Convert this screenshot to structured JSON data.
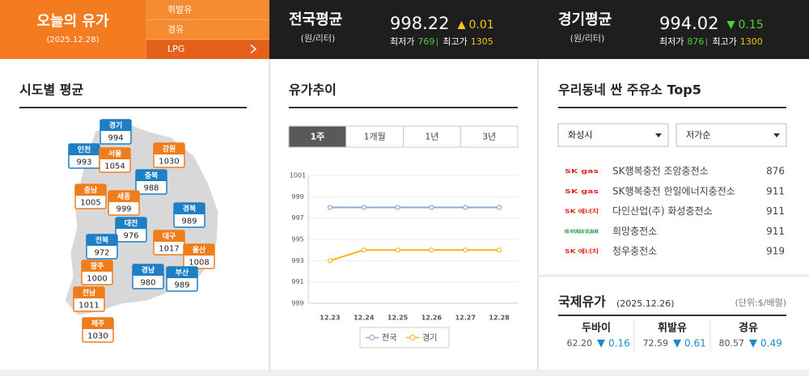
{
  "header": {
    "title": "오늘의 유가",
    "date": "(2025.12.28)",
    "fuel_menu": [
      "휘발유",
      "경유",
      "LPG"
    ],
    "selected_fuel": 2,
    "averages": [
      {
        "label": "전국평균",
        "unit": "(원/리터)",
        "price": "998.22",
        "direction": "up",
        "change": "0.01",
        "min_label": "최저가",
        "min": "769",
        "max_label": "최고가",
        "max": "1305"
      },
      {
        "label": "경기평균",
        "unit": "(원/리터)",
        "price": "994.02",
        "direction": "down",
        "change": "0.15",
        "min_label": "최저가",
        "min": "876",
        "max_label": "최고가",
        "max": "1300"
      }
    ]
  },
  "regional": {
    "title": "시도별 평균",
    "regions": [
      {
        "name": "경기",
        "price": "994",
        "color": "#1f7fc4"
      },
      {
        "name": "인천",
        "price": "993",
        "color": "#1f7fc4"
      },
      {
        "name": "서울",
        "price": "1054",
        "color": "#f07d1c"
      },
      {
        "name": "강원",
        "price": "1030",
        "color": "#f07d1c"
      },
      {
        "name": "충북",
        "price": "988",
        "color": "#1f7fc4"
      },
      {
        "name": "충남",
        "price": "1005",
        "color": "#f07d1c"
      },
      {
        "name": "세종",
        "price": "999",
        "color": "#f07d1c"
      },
      {
        "name": "경북",
        "price": "989",
        "color": "#1f7fc4"
      },
      {
        "name": "대전",
        "price": "976",
        "color": "#1f7fc4"
      },
      {
        "name": "전북",
        "price": "972",
        "color": "#1f7fc4"
      },
      {
        "name": "대구",
        "price": "1017",
        "color": "#f07d1c"
      },
      {
        "name": "울산",
        "price": "1008",
        "color": "#f07d1c"
      },
      {
        "name": "광주",
        "price": "1000",
        "color": "#f07d1c"
      },
      {
        "name": "경남",
        "price": "980",
        "color": "#1f7fc4"
      },
      {
        "name": "부산",
        "price": "989",
        "color": "#1f7fc4"
      },
      {
        "name": "전남",
        "price": "1011",
        "color": "#f07d1c"
      },
      {
        "name": "제주",
        "price": "1030",
        "color": "#f07d1c"
      }
    ]
  },
  "trend": {
    "title": "유가추이",
    "tabs": [
      "1주",
      "1개월",
      "1년",
      "3년"
    ],
    "selected_tab": 0
  },
  "chart_data": {
    "type": "line",
    "categories": [
      "12.23",
      "12.24",
      "12.25",
      "12.26",
      "12.27",
      "12.28"
    ],
    "series": [
      {
        "name": "전국",
        "color": "#8fa8dc",
        "values": [
          998,
          998,
          998,
          998,
          998,
          998
        ]
      },
      {
        "name": "경기",
        "color": "#f2b81c",
        "values": [
          993,
          994,
          994,
          994,
          994,
          994
        ]
      }
    ],
    "ylim": [
      989,
      1001
    ],
    "yticks": [
      989,
      991,
      993,
      995,
      997,
      999,
      1001
    ],
    "grid": true,
    "legend": "bottom"
  },
  "stations": {
    "title": "우리동네 싼 주유소 Top5",
    "filters": [
      "화성시",
      "저가순"
    ],
    "rows": [
      {
        "brand": "SK gas",
        "brand_color": "#e2231a",
        "name": "SK행복충전 조암충전소",
        "price": "876"
      },
      {
        "brand": "SK gas",
        "brand_color": "#e2231a",
        "name": "SK행복충전 한일에너지충전소",
        "price": "911"
      },
      {
        "brand": "SK 에너지",
        "brand_color": "#e2231a",
        "name": "다인산업(주) 화성충전소",
        "price": "911"
      },
      {
        "brand": "HD HYUNDAI OILBANK",
        "brand_color": "#1a9a48",
        "name": "희망충전소",
        "price": "911"
      },
      {
        "brand": "SK 에너지",
        "brand_color": "#e2231a",
        "name": "청우충전소",
        "price": "919"
      }
    ]
  },
  "international": {
    "title": "국제유가",
    "date": "(2025.12.26)",
    "unit": "(단위:$/배럴)",
    "items": [
      {
        "name": "두바이",
        "price": "62.20",
        "direction": "down",
        "change": "0.16"
      },
      {
        "name": "휘발유",
        "price": "72.59",
        "direction": "down",
        "change": "0.61"
      },
      {
        "name": "경유",
        "price": "80.57",
        "direction": "down",
        "change": "0.49"
      }
    ]
  }
}
